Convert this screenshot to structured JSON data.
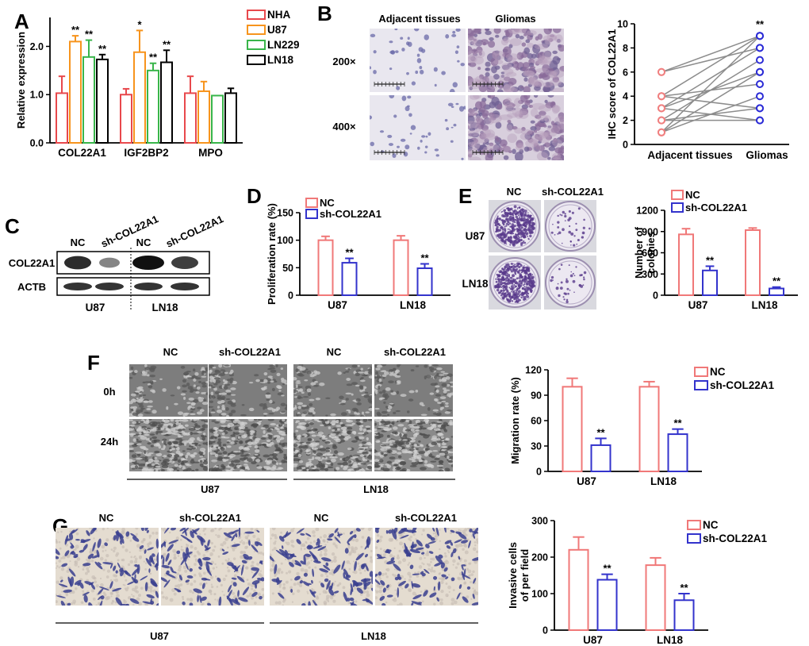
{
  "panels": {
    "A": {
      "label": "A",
      "chart_data": {
        "type": "bar",
        "categories": [
          "COL22A1",
          "IGF2BP2",
          "MPO"
        ],
        "series": [
          {
            "name": "NHA",
            "color": "#e8484c",
            "values": [
              1.03,
              1.0,
              1.03
            ],
            "errors": [
              0.35,
              0.12,
              0.35
            ],
            "sig": [
              "",
              "",
              ""
            ]
          },
          {
            "name": "U87",
            "color": "#f7941d",
            "values": [
              2.1,
              1.88,
              1.07
            ],
            "errors": [
              0.12,
              0.45,
              0.2
            ],
            "sig": [
              "**",
              "*",
              ""
            ]
          },
          {
            "name": "LN229",
            "color": "#39b54a",
            "values": [
              1.78,
              1.5,
              0.98
            ],
            "errors": [
              0.35,
              0.15,
              0.0
            ],
            "sig": [
              "**",
              "**",
              ""
            ]
          },
          {
            "name": "LN18",
            "color": "#000000",
            "values": [
              1.73,
              1.67,
              1.03
            ],
            "errors": [
              0.1,
              0.25,
              0.1
            ],
            "sig": [
              "**",
              "**",
              ""
            ]
          }
        ],
        "ylabel": "Relative expression",
        "ylim": [
          0.0,
          2.6
        ],
        "yticks": [
          "0.0",
          "1.0",
          "2.0"
        ],
        "legend": "right"
      }
    },
    "B": {
      "label": "B",
      "col_headers": [
        "Adjacent tissues",
        "Gliomas"
      ],
      "row_headers": [
        "200×",
        "400×"
      ],
      "chart_data": {
        "type": "scatter",
        "categories": [
          "Adjacent tissues",
          "Gliomas"
        ],
        "ylabel": "IHC score of COL22A1",
        "ylim": [
          0,
          10
        ],
        "yticks": [
          "0",
          "2",
          "4",
          "6",
          "8",
          "10"
        ],
        "pairs": [
          [
            1,
            9
          ],
          [
            1,
            4
          ],
          [
            2,
            7
          ],
          [
            2,
            3
          ],
          [
            3,
            8
          ],
          [
            3,
            6
          ],
          [
            3,
            2
          ],
          [
            4,
            9
          ],
          [
            4,
            5
          ],
          [
            4,
            3
          ],
          [
            6,
            8
          ],
          [
            6,
            9
          ],
          [
            2,
            2
          ],
          [
            1,
            6
          ]
        ],
        "sig": "**",
        "left_color": "#f08080",
        "right_color": "#2b2bd6"
      }
    },
    "C": {
      "label": "C",
      "lane_labels": [
        "NC",
        "sh-COL22A1",
        "NC",
        "sh-COL22A1"
      ],
      "band_labels": [
        "COL22A1",
        "ACTB"
      ],
      "group_labels": [
        "U87",
        "LN18"
      ],
      "band_intensity": [
        [
          0.85,
          0.35,
          1.0,
          0.75
        ],
        [
          0.9,
          0.9,
          0.9,
          0.9
        ]
      ]
    },
    "D": {
      "label": "D",
      "chart_data": {
        "type": "bar",
        "categories": [
          "U87",
          "LN18"
        ],
        "series": [
          {
            "name": "NC",
            "color": "#f07878",
            "values": [
              100,
              100
            ],
            "errors": [
              7,
              8
            ],
            "sig": [
              "",
              ""
            ]
          },
          {
            "name": "sh-COL22A1",
            "color": "#3333cc",
            "values": [
              59,
              49
            ],
            "errors": [
              8,
              8
            ],
            "sig": [
              "**",
              "**"
            ]
          }
        ],
        "ylabel": "Proliferation rate (%)",
        "ylim": [
          0,
          150
        ],
        "yticks": [
          "0",
          "50",
          "100",
          "150"
        ],
        "legend": "top-left"
      }
    },
    "E": {
      "label": "E",
      "col_headers": [
        "NC",
        "sh-COL22A1"
      ],
      "row_headers": [
        "U87",
        "LN18"
      ],
      "chart_data": {
        "type": "bar",
        "categories": [
          "U87",
          "LN18"
        ],
        "series": [
          {
            "name": "NC",
            "color": "#f07878",
            "values": [
              860,
              920
            ],
            "errors": [
              80,
              30
            ],
            "sig": [
              "",
              ""
            ]
          },
          {
            "name": "sh-COL22A1",
            "color": "#3333cc",
            "values": [
              350,
              95
            ],
            "errors": [
              60,
              20
            ],
            "sig": [
              "**",
              "**"
            ]
          }
        ],
        "ylabel": "Number of colonies",
        "ylim": [
          0,
          1200
        ],
        "yticks": [
          "0",
          "300",
          "600",
          "900",
          "1200"
        ],
        "legend": "top-left"
      }
    },
    "F": {
      "label": "F",
      "col_headers": [
        "NC",
        "sh-COL22A1",
        "NC",
        "sh-COL22A1"
      ],
      "row_headers": [
        "0h",
        "24h"
      ],
      "group_labels": [
        "U87",
        "LN18"
      ],
      "chart_data": {
        "type": "bar",
        "categories": [
          "U87",
          "LN18"
        ],
        "series": [
          {
            "name": "NC",
            "color": "#f07878",
            "values": [
              100,
              100
            ],
            "errors": [
              10,
              6
            ],
            "sig": [
              "",
              ""
            ]
          },
          {
            "name": "sh-COL22A1",
            "color": "#3333cc",
            "values": [
              31,
              44
            ],
            "errors": [
              8,
              6
            ],
            "sig": [
              "**",
              "**"
            ]
          }
        ],
        "ylabel": "Migration rate (%)",
        "ylim": [
          0,
          120
        ],
        "yticks": [
          "0",
          "30",
          "60",
          "90",
          "120"
        ],
        "legend": "top-right"
      }
    },
    "G": {
      "label": "G",
      "col_headers": [
        "NC",
        "sh-COL22A1",
        "NC",
        "sh-COL22A1"
      ],
      "group_labels": [
        "U87",
        "LN18"
      ],
      "chart_data": {
        "type": "bar",
        "categories": [
          "U87",
          "LN18"
        ],
        "series": [
          {
            "name": "NC",
            "color": "#f07878",
            "values": [
              220,
              178
            ],
            "errors": [
              35,
              20
            ],
            "sig": [
              "",
              ""
            ]
          },
          {
            "name": "sh-COL22A1",
            "color": "#3333cc",
            "values": [
              138,
              82
            ],
            "errors": [
              15,
              18
            ],
            "sig": [
              "**",
              "**"
            ]
          }
        ],
        "ylabel": "Invasive cells of per field",
        "ylim": [
          0,
          300
        ],
        "yticks": [
          "0",
          "100",
          "200",
          "300"
        ],
        "legend": "top-right"
      }
    }
  }
}
